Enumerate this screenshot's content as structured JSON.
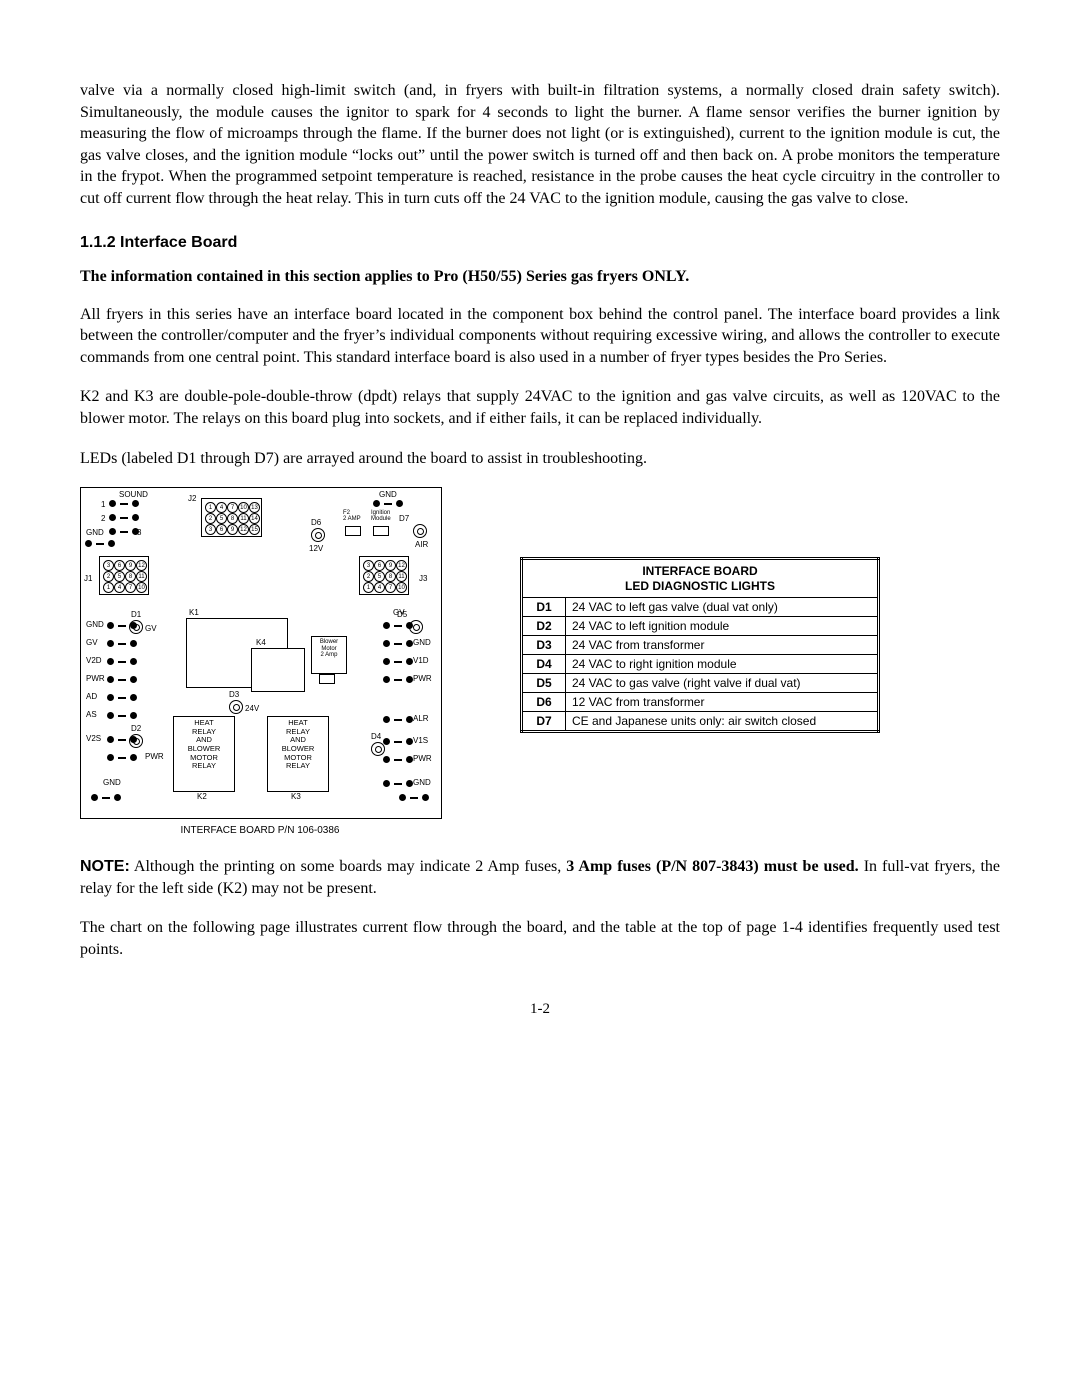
{
  "paragraphs": {
    "p1": "valve via a normally closed high-limit switch (and, in fryers with built-in filtration systems, a normally closed drain safety switch).  Simultaneously, the module causes the ignitor to spark for 4 seconds to light the burner.  A flame sensor verifies the burner ignition by measuring the flow of microamps through the flame.  If the burner does not light (or is extinguished), current to the ignition module is cut, the gas valve closes, and the ignition module “locks out” until the power switch is turned off and then back on.  A probe monitors the temperature in the frypot.  When the programmed setpoint temperature is reached, resistance in the probe causes the heat cycle circuitry in the controller to cut off current flow through the heat relay.  This in turn cuts off the 24 VAC to the ignition module, causing the gas valve to close.",
    "heading": "1.1.2   Interface Board",
    "bold_line": "The information contained in this section applies to Pro (H50/55) Series gas fryers ONLY.",
    "p2": "All fryers in this series have an interface board located in the component box behind the control panel.  The interface board provides a link between the controller/computer and the fryer’s individual components without requiring excessive wiring, and allows the controller to execute commands from one central point.  This standard interface board is also used in a number of fryer types besides the Pro Series.",
    "p3": "K2 and K3 are double-pole-double-throw (dpdt) relays that supply 24VAC to the ignition and gas valve circuits, as well as 120VAC to the blower motor.  The relays on this board plug into sockets, and if either fails, it can be replaced individually.",
    "p4": "LEDs (labeled D1 through D7) are arrayed around the board to assist in troubleshooting.",
    "note_label": "NOTE:",
    "note_a": "  Although the printing on some boards may indicate 2 Amp fuses, ",
    "note_b": "3 Amp fuses (P/N 807-3843) must be used.",
    "note_c": "  In full-vat fryers, the relay for the left side (K2) may not be present.",
    "p5": "The chart on the following page illustrates current flow through the board, and the table at the top of page 1-4 identifies frequently used test points.",
    "page_num": "1-2"
  },
  "diagram": {
    "caption": "INTERFACE BOARD P/N 106-0386",
    "top_labels": {
      "sound": "SOUND",
      "j2": "J2",
      "gnd_top": "GND"
    },
    "fuses": {
      "f2": "F2\n2 AMP",
      "ign": "Ignition\nModule",
      "d7": "D7",
      "air": "AIR"
    },
    "d6": "D6",
    "twelve_v": "12V",
    "left_col_labels": [
      "GND",
      "GV",
      "V2D",
      "PWR",
      "AD",
      "AS",
      "V2S",
      "PWR",
      "GND"
    ],
    "d1": "D1",
    "d2": "D2",
    "right_col_labels": [
      "GV",
      "GND",
      "V1D",
      "PWR",
      "ALR",
      "V1S",
      "PWR",
      "GND"
    ],
    "d5": "D5",
    "d4": "D4",
    "j1": "J1",
    "j3": "J3",
    "k1": "K1",
    "k4": "K4",
    "d3": "D3",
    "v24": "24V",
    "blower": "Blower\nMotor\n2 Amp",
    "heat_relay": "HEAT\nRELAY\nAND\nBLOWER\nMOTOR\nRELAY",
    "k2": "K2",
    "k3": "K3",
    "j1_pins": [
      "3",
      "6",
      "9",
      "12",
      "2",
      "5",
      "8",
      "11",
      "1",
      "4",
      "7",
      "10"
    ],
    "j2_pins": [
      "1",
      "4",
      "7",
      "10",
      "13",
      "2",
      "5",
      "8",
      "11",
      "14",
      "3",
      "6",
      "9",
      "12",
      "15"
    ],
    "j3_pins": [
      "3",
      "6",
      "9",
      "12",
      "2",
      "5",
      "8",
      "11",
      "1",
      "4",
      "7",
      "10"
    ]
  },
  "led_table": {
    "title1": "INTERFACE BOARD",
    "title2": "LED DIAGNOSTIC LIGHTS",
    "rows": [
      {
        "k": "D1",
        "v": "24 VAC to left gas valve (dual vat only)"
      },
      {
        "k": "D2",
        "v": "24 VAC to left ignition module"
      },
      {
        "k": "D3",
        "v": "24 VAC from transformer"
      },
      {
        "k": "D4",
        "v": "24 VAC to right ignition module"
      },
      {
        "k": "D5",
        "v": "24 VAC to gas valve (right valve if dual vat)"
      },
      {
        "k": "D6",
        "v": "12 VAC from transformer"
      },
      {
        "k": "D7",
        "v": "CE and Japanese units only:  air switch closed"
      }
    ]
  },
  "colors": {
    "text": "#000000",
    "bg": "#ffffff",
    "border": "#000000"
  }
}
